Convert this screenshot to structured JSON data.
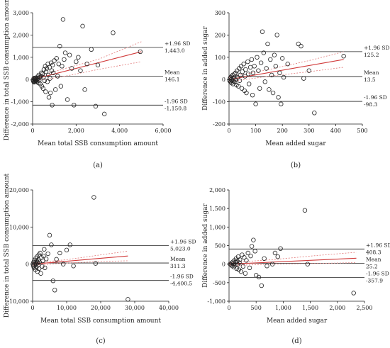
{
  "chart_data": [
    {
      "type": "scatter",
      "caption": "(a)",
      "xlabel": "Mean total SSB consumption amount",
      "ylabel": "Difference in total SSB consumption amount",
      "xlim": [
        0,
        6000
      ],
      "ylim": [
        -2000,
        3000
      ],
      "xticks": [
        0,
        2000,
        4000,
        6000
      ],
      "yticks": [
        -2000,
        -1000,
        0,
        1000,
        2000,
        3000
      ],
      "ref_lines": [
        {
          "labels": [
            "+1.96 SD",
            "1,443.0"
          ],
          "value": 1443.0
        },
        {
          "labels": [
            "Mean",
            "146.1"
          ],
          "value": 146.1
        },
        {
          "labels": [
            "-1.96 SD",
            "-1,150.8"
          ],
          "value": -1150.8
        }
      ],
      "fit": {
        "x": [
          0,
          5000
        ],
        "y": [
          0,
          1250
        ]
      },
      "ci_upper": {
        "x": [
          0,
          1500,
          3000,
          5000
        ],
        "y": [
          80,
          500,
          900,
          1700
        ]
      },
      "ci_lower": {
        "x": [
          0,
          1500,
          3000,
          5000
        ],
        "y": [
          -80,
          150,
          450,
          800
        ]
      },
      "points": [
        [
          20,
          -30
        ],
        [
          40,
          -80
        ],
        [
          50,
          40
        ],
        [
          60,
          -120
        ],
        [
          80,
          0
        ],
        [
          90,
          -50
        ],
        [
          100,
          20
        ],
        [
          110,
          -100
        ],
        [
          120,
          60
        ],
        [
          130,
          -20
        ],
        [
          150,
          80
        ],
        [
          160,
          -60
        ],
        [
          180,
          30
        ],
        [
          200,
          -90
        ],
        [
          220,
          10
        ],
        [
          250,
          120
        ],
        [
          260,
          -150
        ],
        [
          280,
          200
        ],
        [
          300,
          -40
        ],
        [
          320,
          90
        ],
        [
          350,
          -200
        ],
        [
          380,
          150
        ],
        [
          400,
          300
        ],
        [
          420,
          -300
        ],
        [
          450,
          250
        ],
        [
          480,
          -400
        ],
        [
          500,
          100
        ],
        [
          520,
          450
        ],
        [
          550,
          -50
        ],
        [
          580,
          600
        ],
        [
          600,
          -550
        ],
        [
          620,
          350
        ],
        [
          650,
          500
        ],
        [
          680,
          -100
        ],
        [
          700,
          700
        ],
        [
          720,
          200
        ],
        [
          750,
          -800
        ],
        [
          780,
          550
        ],
        [
          800,
          50
        ],
        [
          820,
          -600
        ],
        [
          850,
          750
        ],
        [
          880,
          400
        ],
        [
          900,
          -1150
        ],
        [
          920,
          650
        ],
        [
          950,
          300
        ],
        [
          1000,
          850
        ],
        [
          1050,
          -450
        ],
        [
          1100,
          950
        ],
        [
          1150,
          150
        ],
        [
          1200,
          700
        ],
        [
          1250,
          1500
        ],
        [
          1300,
          -300
        ],
        [
          1350,
          600
        ],
        [
          1400,
          2700
        ],
        [
          1450,
          900
        ],
        [
          1500,
          1200
        ],
        [
          1600,
          -900
        ],
        [
          1700,
          1100
        ],
        [
          1800,
          500
        ],
        [
          1900,
          -1150
        ],
        [
          2000,
          800
        ],
        [
          2100,
          1000
        ],
        [
          2200,
          400
        ],
        [
          2300,
          2400
        ],
        [
          2400,
          -450
        ],
        [
          2500,
          700
        ],
        [
          2700,
          1350
        ],
        [
          2900,
          -1200
        ],
        [
          3000,
          650
        ],
        [
          3300,
          -1550
        ],
        [
          3700,
          2100
        ],
        [
          4950,
          1250
        ]
      ]
    },
    {
      "type": "scatter",
      "caption": "(b)",
      "xlabel": "Mean added sugar",
      "ylabel": "Difference in added sugar",
      "xlim": [
        0,
        500
      ],
      "ylim": [
        -200,
        300
      ],
      "xticks": [
        0,
        100,
        200,
        300,
        400,
        500
      ],
      "yticks": [
        -200,
        -100,
        0,
        100,
        200,
        300
      ],
      "ref_lines": [
        {
          "labels": [
            "+1.96 SD",
            "125.2"
          ],
          "value": 125.2
        },
        {
          "labels": [
            "Mean",
            "13.5"
          ],
          "value": 13.5
        },
        {
          "labels": [
            "-1.96 SD",
            "-98.3"
          ],
          "value": -98.3
        }
      ],
      "fit": {
        "x": [
          0,
          430
        ],
        "y": [
          0,
          90
        ]
      },
      "ci_upper": {
        "x": [
          0,
          150,
          300,
          430
        ],
        "y": [
          10,
          45,
          85,
          125
        ]
      },
      "ci_lower": {
        "x": [
          0,
          150,
          300,
          430
        ],
        "y": [
          -10,
          15,
          35,
          55
        ]
      },
      "points": [
        [
          2,
          -5
        ],
        [
          4,
          5
        ],
        [
          5,
          -10
        ],
        [
          6,
          10
        ],
        [
          8,
          0
        ],
        [
          9,
          -15
        ],
        [
          10,
          15
        ],
        [
          12,
          -5
        ],
        [
          14,
          20
        ],
        [
          15,
          -20
        ],
        [
          17,
          8
        ],
        [
          18,
          -8
        ],
        [
          20,
          25
        ],
        [
          22,
          -12
        ],
        [
          24,
          0
        ],
        [
          25,
          30
        ],
        [
          28,
          -25
        ],
        [
          30,
          40
        ],
        [
          32,
          10
        ],
        [
          35,
          -30
        ],
        [
          38,
          50
        ],
        [
          40,
          -5
        ],
        [
          42,
          20
        ],
        [
          45,
          60
        ],
        [
          48,
          -40
        ],
        [
          50,
          35
        ],
        [
          55,
          70
        ],
        [
          58,
          -50
        ],
        [
          60,
          15
        ],
        [
          62,
          45
        ],
        [
          65,
          -60
        ],
        [
          70,
          80
        ],
        [
          72,
          25
        ],
        [
          75,
          -20
        ],
        [
          80,
          55
        ],
        [
          85,
          90
        ],
        [
          88,
          -70
        ],
        [
          90,
          30
        ],
        [
          95,
          60
        ],
        [
          100,
          -110
        ],
        [
          105,
          100
        ],
        [
          110,
          40
        ],
        [
          115,
          -40
        ],
        [
          120,
          75
        ],
        [
          125,
          215
        ],
        [
          130,
          120
        ],
        [
          135,
          -10
        ],
        [
          140,
          50
        ],
        [
          145,
          160
        ],
        [
          150,
          -45
        ],
        [
          155,
          90
        ],
        [
          160,
          20
        ],
        [
          165,
          -60
        ],
        [
          170,
          110
        ],
        [
          175,
          60
        ],
        [
          180,
          200
        ],
        [
          185,
          -80
        ],
        [
          190,
          30
        ],
        [
          195,
          -110
        ],
        [
          200,
          95
        ],
        [
          205,
          10
        ],
        [
          220,
          70
        ],
        [
          260,
          160
        ],
        [
          270,
          150
        ],
        [
          280,
          5
        ],
        [
          300,
          40
        ],
        [
          320,
          -150
        ],
        [
          430,
          105
        ]
      ]
    },
    {
      "type": "scatter",
      "caption": "(c)",
      "xlabel": "Mean total SSB consumption amount",
      "ylabel": "Difference in total SSB consumption amount",
      "xlim": [
        0,
        40000
      ],
      "ylim": [
        -10000,
        20000
      ],
      "xticks": [
        0,
        10000,
        20000,
        30000,
        40000
      ],
      "yticks": [
        -10000,
        0,
        10000,
        20000
      ],
      "ref_lines": [
        {
          "labels": [
            "+1.96 SD",
            "5,023.0"
          ],
          "value": 5023.0
        },
        {
          "labels": [
            "Mean",
            "311.3"
          ],
          "value": 311.3
        },
        {
          "labels": [
            "-1.96 SD",
            "-4,400.5"
          ],
          "value": -4400.5
        }
      ],
      "fit": {
        "x": [
          0,
          28000
        ],
        "y": [
          0,
          2200
        ]
      },
      "ci_upper": {
        "x": [
          0,
          10000,
          20000,
          28000
        ],
        "y": [
          300,
          1200,
          2500,
          3500
        ]
      },
      "ci_lower": {
        "x": [
          0,
          10000,
          20000,
          28000
        ],
        "y": [
          -300,
          300,
          700,
          900
        ]
      },
      "points": [
        [
          100,
          0
        ],
        [
          200,
          -500
        ],
        [
          300,
          500
        ],
        [
          400,
          -1000
        ],
        [
          500,
          1000
        ],
        [
          600,
          -200
        ],
        [
          700,
          300
        ],
        [
          800,
          -1500
        ],
        [
          900,
          1500
        ],
        [
          1000,
          0
        ],
        [
          1100,
          -800
        ],
        [
          1200,
          800
        ],
        [
          1300,
          2000
        ],
        [
          1400,
          -2000
        ],
        [
          1500,
          400
        ],
        [
          1600,
          -300
        ],
        [
          1700,
          1200
        ],
        [
          1800,
          2500
        ],
        [
          1900,
          -1200
        ],
        [
          2000,
          600
        ],
        [
          2200,
          3000
        ],
        [
          2400,
          -2500
        ],
        [
          2600,
          1800
        ],
        [
          2800,
          -600
        ],
        [
          3000,
          900
        ],
        [
          3200,
          2200
        ],
        [
          3400,
          4000
        ],
        [
          3600,
          -1000
        ],
        [
          4000,
          1400
        ],
        [
          4500,
          2800
        ],
        [
          5000,
          7800
        ],
        [
          5500,
          5200
        ],
        [
          6000,
          -4500
        ],
        [
          6500,
          -7000
        ],
        [
          7000,
          1300
        ],
        [
          8000,
          3000
        ],
        [
          9000,
          0
        ],
        [
          10000,
          3800
        ],
        [
          11000,
          5200
        ],
        [
          12000,
          -500
        ],
        [
          18000,
          18000
        ],
        [
          18500,
          200
        ],
        [
          28000,
          -9500
        ]
      ]
    },
    {
      "type": "scatter",
      "caption": "(d)",
      "xlabel": "Mean added sugar",
      "ylabel": "Difference in added sugar",
      "xlim": [
        0,
        2500
      ],
      "ylim": [
        -1000,
        2000
      ],
      "xticks": [
        0,
        500,
        1000,
        1500,
        2000,
        2500
      ],
      "yticks": [
        -1000,
        -500,
        0,
        500,
        1000,
        1500,
        2000
      ],
      "ref_lines": [
        {
          "labels": [
            "+1.96 SD",
            "408.3"
          ],
          "value": 408.3
        },
        {
          "labels": [
            "Mean",
            "25.2"
          ],
          "value": 25.2
        },
        {
          "labels": [
            "-1.96 SD",
            "-357.9"
          ],
          "value": -357.9
        }
      ],
      "fit": {
        "x": [
          0,
          2350
        ],
        "y": [
          0,
          160
        ]
      },
      "ci_upper": {
        "x": [
          0,
          800,
          1600,
          2350
        ],
        "y": [
          40,
          120,
          230,
          320
        ]
      },
      "ci_lower": {
        "x": [
          0,
          800,
          1600,
          2350
        ],
        "y": [
          -40,
          0,
          20,
          40
        ]
      },
      "points": [
        [
          20,
          0
        ],
        [
          40,
          -20
        ],
        [
          50,
          30
        ],
        [
          60,
          -50
        ],
        [
          70,
          60
        ],
        [
          80,
          10
        ],
        [
          90,
          -80
        ],
        [
          100,
          100
        ],
        [
          110,
          -30
        ],
        [
          120,
          50
        ],
        [
          130,
          150
        ],
        [
          140,
          -120
        ],
        [
          150,
          80
        ],
        [
          160,
          -10
        ],
        [
          170,
          200
        ],
        [
          180,
          -150
        ],
        [
          190,
          40
        ],
        [
          200,
          120
        ],
        [
          220,
          -200
        ],
        [
          240,
          250
        ],
        [
          260,
          -60
        ],
        [
          280,
          180
        ],
        [
          300,
          -250
        ],
        [
          320,
          100
        ],
        [
          350,
          300
        ],
        [
          380,
          -100
        ],
        [
          400,
          220
        ],
        [
          420,
          480
        ],
        [
          450,
          650
        ],
        [
          480,
          350
        ],
        [
          500,
          -300
        ],
        [
          550,
          -350
        ],
        [
          600,
          -580
        ],
        [
          650,
          150
        ],
        [
          700,
          -50
        ],
        [
          800,
          0
        ],
        [
          850,
          300
        ],
        [
          900,
          200
        ],
        [
          950,
          420
        ],
        [
          1400,
          1450
        ],
        [
          1450,
          0
        ],
        [
          2300,
          -780
        ]
      ]
    }
  ]
}
